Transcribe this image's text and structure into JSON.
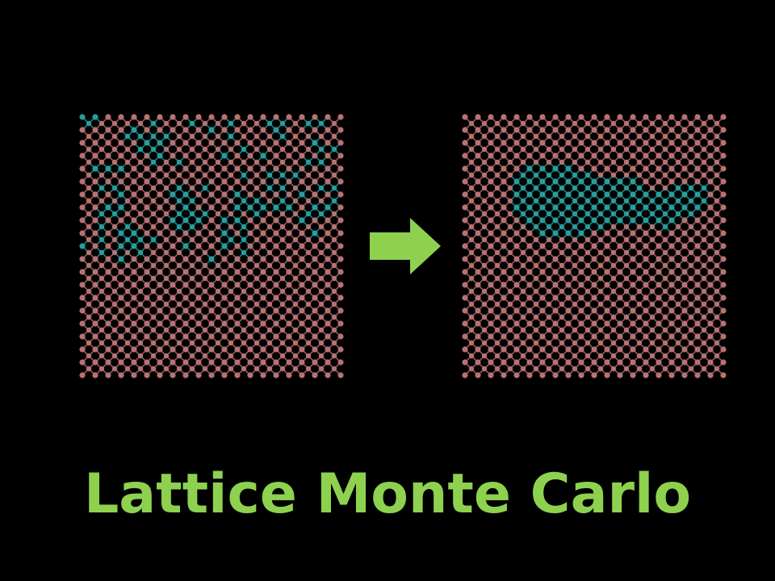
{
  "slide": {
    "title": "Lattice Monte Carlo"
  },
  "colors": {
    "background": "#000000",
    "host_atom": "#b87272",
    "host_bond": "#8f5a5a",
    "solute_atom": "#2a9c9c",
    "solute_bond": "#1f7e7e",
    "arrow": "#8ed14f",
    "title": "#8ed14f"
  },
  "icons": {
    "transition_arrow": "right-arrow-icon"
  },
  "lattice": {
    "size": 20,
    "before": {
      "label": "random-solute-distribution",
      "solute_sites": [
        [
          0,
          0
        ],
        [
          1,
          0
        ],
        [
          0,
          1
        ],
        [
          5,
          1
        ],
        [
          8,
          1
        ],
        [
          11,
          1
        ],
        [
          14,
          1
        ],
        [
          15,
          1
        ],
        [
          17,
          1
        ],
        [
          18,
          1
        ],
        [
          4,
          2
        ],
        [
          10,
          2
        ],
        [
          15,
          2
        ],
        [
          4,
          3
        ],
        [
          5,
          3
        ],
        [
          6,
          3
        ],
        [
          11,
          3
        ],
        [
          15,
          3
        ],
        [
          3,
          3
        ],
        [
          5,
          4
        ],
        [
          6,
          4
        ],
        [
          18,
          4
        ],
        [
          4,
          5
        ],
        [
          5,
          5
        ],
        [
          12,
          5
        ],
        [
          18,
          5
        ],
        [
          19,
          5
        ],
        [
          6,
          6
        ],
        [
          11,
          6
        ],
        [
          14,
          6
        ],
        [
          5,
          7
        ],
        [
          7,
          7
        ],
        [
          17,
          7
        ],
        [
          18,
          7
        ],
        [
          1,
          8
        ],
        [
          2,
          8
        ],
        [
          3,
          8
        ],
        [
          14,
          9
        ],
        [
          12,
          9
        ],
        [
          15,
          9
        ],
        [
          16,
          9
        ],
        [
          1,
          11
        ],
        [
          2,
          11
        ],
        [
          7,
          11
        ],
        [
          9,
          11
        ],
        [
          14,
          11
        ],
        [
          15,
          11
        ],
        [
          18,
          11
        ],
        [
          19,
          11
        ],
        [
          3,
          12
        ],
        [
          7,
          12
        ],
        [
          8,
          12
        ],
        [
          12,
          12
        ],
        [
          17,
          12
        ],
        [
          7,
          13
        ],
        [
          8,
          13
        ],
        [
          12,
          13
        ],
        [
          13,
          13
        ],
        [
          15,
          13
        ],
        [
          19,
          13
        ],
        [
          2,
          14
        ],
        [
          3,
          14
        ],
        [
          8,
          14
        ],
        [
          12,
          14
        ],
        [
          13,
          14
        ],
        [
          14,
          14
        ],
        [
          15,
          14
        ],
        [
          16,
          14
        ],
        [
          18,
          14
        ],
        [
          19,
          14
        ],
        [
          1,
          15
        ],
        [
          2,
          15
        ],
        [
          7,
          15
        ],
        [
          8,
          15
        ],
        [
          9,
          15
        ],
        [
          13,
          15
        ],
        [
          17,
          15
        ],
        [
          18,
          15
        ],
        [
          7,
          16
        ],
        [
          8,
          16
        ],
        [
          9,
          16
        ],
        [
          11,
          16
        ],
        [
          12,
          16
        ],
        [
          17,
          16
        ],
        [
          1,
          17
        ],
        [
          3,
          17
        ],
        [
          7,
          17
        ],
        [
          8,
          17
        ],
        [
          12,
          17
        ],
        [
          3,
          18
        ],
        [
          4,
          18
        ],
        [
          11,
          18
        ],
        [
          18,
          18
        ],
        [
          1,
          19
        ],
        [
          3,
          19
        ],
        [
          4,
          19
        ],
        [
          5,
          19
        ],
        [
          11,
          19
        ],
        [
          12,
          19
        ],
        [
          0,
          20
        ],
        [
          3,
          20
        ],
        [
          4,
          20
        ],
        [
          8,
          20
        ],
        [
          11,
          20
        ],
        [
          1,
          21
        ],
        [
          4,
          21
        ],
        [
          12,
          21
        ],
        [
          3,
          22
        ],
        [
          10,
          22
        ]
      ]
    },
    "after": {
      "label": "clustered-solute-distribution",
      "solute_sites": [
        [
          5,
          8
        ],
        [
          6,
          8
        ],
        [
          7,
          8
        ],
        [
          8,
          8
        ],
        [
          4,
          9
        ],
        [
          5,
          9
        ],
        [
          6,
          9
        ],
        [
          7,
          9
        ],
        [
          8,
          9
        ],
        [
          9,
          9
        ],
        [
          4,
          10
        ],
        [
          5,
          10
        ],
        [
          6,
          10
        ],
        [
          7,
          10
        ],
        [
          8,
          10
        ],
        [
          9,
          10
        ],
        [
          10,
          10
        ],
        [
          11,
          10
        ],
        [
          12,
          10
        ],
        [
          13,
          10
        ],
        [
          4,
          11
        ],
        [
          5,
          11
        ],
        [
          6,
          11
        ],
        [
          7,
          11
        ],
        [
          8,
          11
        ],
        [
          9,
          11
        ],
        [
          10,
          11
        ],
        [
          11,
          11
        ],
        [
          12,
          11
        ],
        [
          13,
          11
        ],
        [
          16,
          11
        ],
        [
          17,
          11
        ],
        [
          18,
          11
        ],
        [
          4,
          12
        ],
        [
          5,
          12
        ],
        [
          6,
          12
        ],
        [
          7,
          12
        ],
        [
          8,
          12
        ],
        [
          9,
          12
        ],
        [
          10,
          12
        ],
        [
          11,
          12
        ],
        [
          12,
          12
        ],
        [
          13,
          12
        ],
        [
          14,
          12
        ],
        [
          15,
          12
        ],
        [
          16,
          12
        ],
        [
          17,
          12
        ],
        [
          18,
          12
        ],
        [
          4,
          13
        ],
        [
          5,
          13
        ],
        [
          6,
          13
        ],
        [
          7,
          13
        ],
        [
          8,
          13
        ],
        [
          9,
          13
        ],
        [
          10,
          13
        ],
        [
          11,
          13
        ],
        [
          12,
          13
        ],
        [
          13,
          13
        ],
        [
          14,
          13
        ],
        [
          15,
          13
        ],
        [
          16,
          13
        ],
        [
          17,
          13
        ],
        [
          18,
          13
        ],
        [
          4,
          14
        ],
        [
          5,
          14
        ],
        [
          6,
          14
        ],
        [
          7,
          14
        ],
        [
          8,
          14
        ],
        [
          9,
          14
        ],
        [
          10,
          14
        ],
        [
          11,
          14
        ],
        [
          12,
          14
        ],
        [
          13,
          14
        ],
        [
          14,
          14
        ],
        [
          15,
          14
        ],
        [
          16,
          14
        ],
        [
          17,
          14
        ],
        [
          18,
          14
        ],
        [
          4,
          15
        ],
        [
          5,
          15
        ],
        [
          6,
          15
        ],
        [
          7,
          15
        ],
        [
          8,
          15
        ],
        [
          9,
          15
        ],
        [
          10,
          15
        ],
        [
          11,
          15
        ],
        [
          12,
          15
        ],
        [
          13,
          15
        ],
        [
          14,
          15
        ],
        [
          15,
          15
        ],
        [
          16,
          15
        ],
        [
          17,
          15
        ],
        [
          5,
          16
        ],
        [
          6,
          16
        ],
        [
          7,
          16
        ],
        [
          8,
          16
        ],
        [
          9,
          16
        ],
        [
          10,
          16
        ],
        [
          11,
          16
        ],
        [
          12,
          16
        ],
        [
          13,
          16
        ],
        [
          14,
          16
        ],
        [
          15,
          16
        ],
        [
          16,
          16
        ],
        [
          5,
          17
        ],
        [
          6,
          17
        ],
        [
          7,
          17
        ],
        [
          8,
          17
        ],
        [
          9,
          17
        ],
        [
          10,
          17
        ],
        [
          15,
          17
        ],
        [
          6,
          18
        ],
        [
          7,
          18
        ],
        [
          8,
          18
        ],
        [
          9,
          18
        ]
      ]
    }
  }
}
